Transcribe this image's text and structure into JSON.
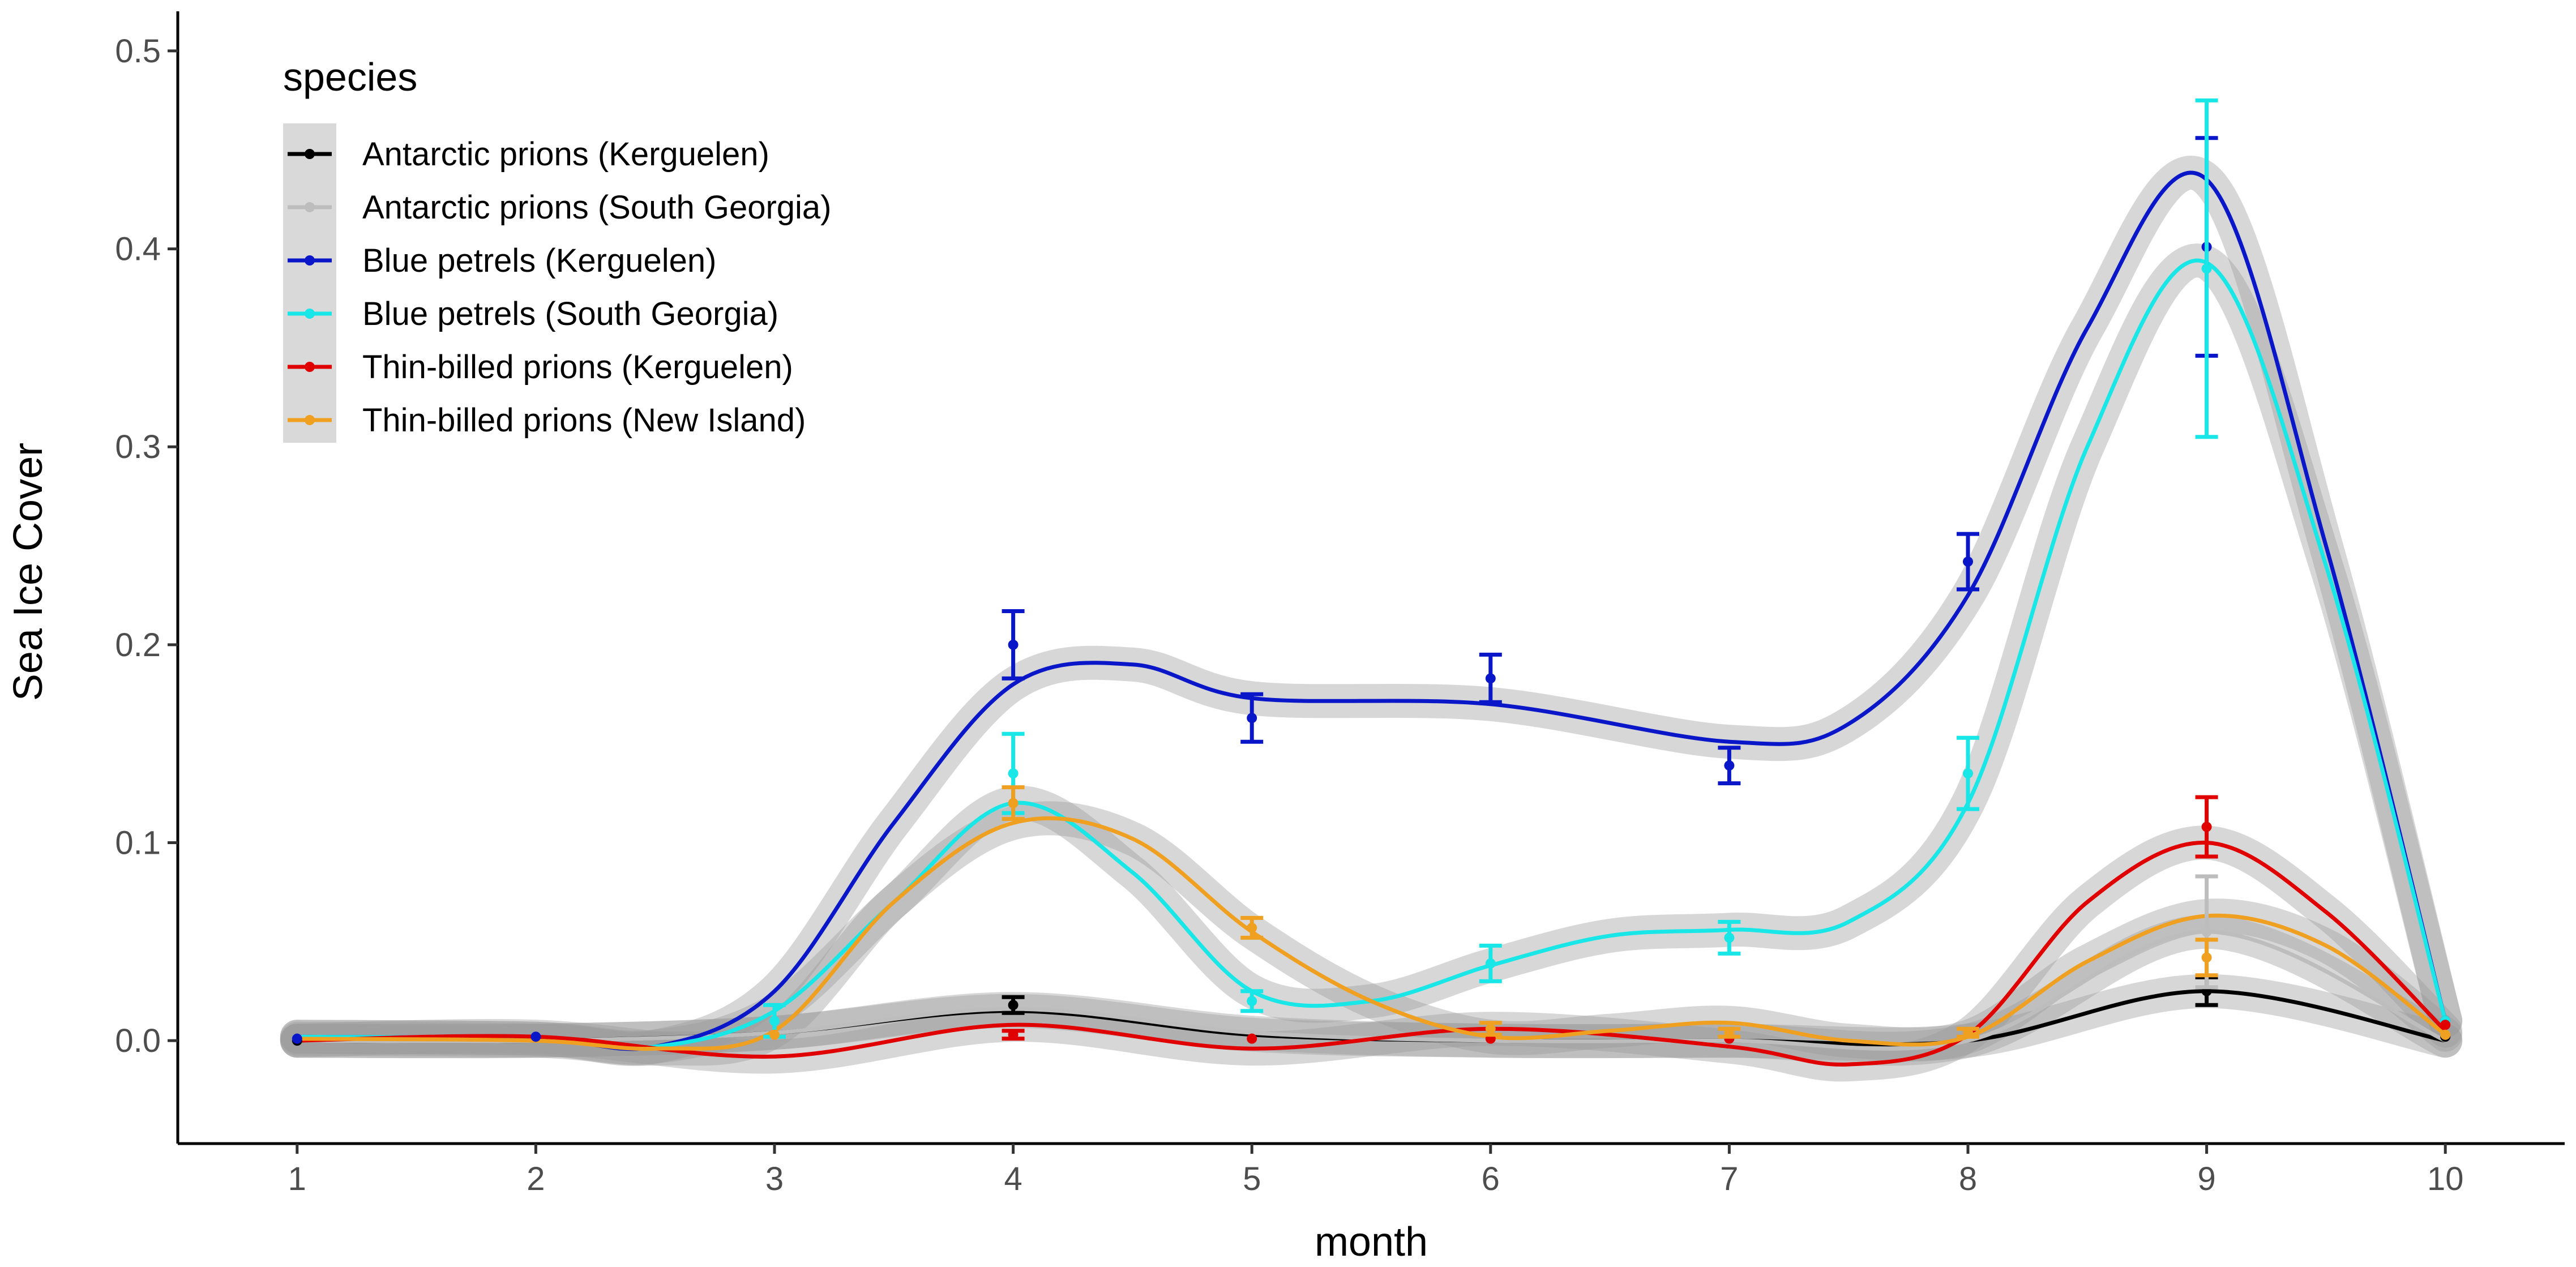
{
  "chart_data": {
    "type": "line",
    "title": "",
    "xlabel": "month",
    "ylabel": "Sea Ice Cover",
    "xlim": [
      0.5,
      10.5
    ],
    "ylim": [
      -0.052,
      0.52
    ],
    "xticks": [
      "1",
      "2",
      "3",
      "4",
      "5",
      "6",
      "7",
      "8",
      "9",
      "10"
    ],
    "yticks": [
      "0.0",
      "0.1",
      "0.2",
      "0.3",
      "0.4",
      "0.5"
    ],
    "legend": {
      "title": "species",
      "position": "top-left"
    },
    "series": [
      {
        "name": "Antarctic prions (Kerguelen)",
        "color": "#000000",
        "points": [
          {
            "x": 1,
            "y": 0.0
          },
          {
            "x": 4,
            "y": 0.018,
            "se": 0.004
          },
          {
            "x": 9,
            "y": 0.025,
            "se": 0.007
          },
          {
            "x": 10,
            "y": 0.002
          }
        ],
        "smooth": [
          [
            1,
            0.0
          ],
          [
            2,
            0.0
          ],
          [
            3,
            0.004
          ],
          [
            4,
            0.015
          ],
          [
            5,
            0.003
          ],
          [
            6,
            0.0
          ],
          [
            7,
            0.0
          ],
          [
            8,
            0.0
          ],
          [
            9,
            0.025
          ],
          [
            10,
            0.0
          ]
        ]
      },
      {
        "name": "Antarctic prions (South Georgia)",
        "color": "#bdbdbd",
        "points": [
          {
            "x": 9,
            "y": 0.055,
            "se": 0.028
          },
          {
            "x": 10,
            "y": 0.003
          }
        ],
        "smooth": [
          [
            1,
            0.0
          ],
          [
            2,
            0.0
          ],
          [
            3,
            0.004
          ],
          [
            4,
            0.016
          ],
          [
            5,
            0.004
          ],
          [
            6,
            0.0
          ],
          [
            7,
            0.0
          ],
          [
            8,
            0.0
          ],
          [
            9,
            0.055
          ],
          [
            10,
            0.0
          ]
        ]
      },
      {
        "name": "Blue petrels (Kerguelen)",
        "color": "#0a17c8",
        "points": [
          {
            "x": 1,
            "y": 0.001
          },
          {
            "x": 2,
            "y": 0.002
          },
          {
            "x": 4,
            "y": 0.2,
            "se": 0.017
          },
          {
            "x": 5,
            "y": 0.163,
            "se": 0.012
          },
          {
            "x": 6,
            "y": 0.183,
            "se": 0.012
          },
          {
            "x": 7,
            "y": 0.139,
            "se": 0.009
          },
          {
            "x": 8,
            "y": 0.242,
            "se": 0.014
          },
          {
            "x": 9,
            "y": 0.401,
            "se": 0.055
          },
          {
            "x": 10,
            "y": 0.01
          }
        ],
        "smooth": [
          [
            1,
            0.002
          ],
          [
            2,
            0.001
          ],
          [
            2.5,
            -0.003
          ],
          [
            3,
            0.025
          ],
          [
            3.5,
            0.11
          ],
          [
            4,
            0.18
          ],
          [
            4.5,
            0.19
          ],
          [
            5,
            0.173
          ],
          [
            6,
            0.17
          ],
          [
            7,
            0.151
          ],
          [
            7.5,
            0.16
          ],
          [
            8,
            0.225
          ],
          [
            8.5,
            0.36
          ],
          [
            9,
            0.435
          ],
          [
            9.5,
            0.25
          ],
          [
            10,
            0.01
          ]
        ]
      },
      {
        "name": "Blue petrels (South Georgia)",
        "color": "#19e6e6",
        "points": [
          {
            "x": 3,
            "y": 0.01,
            "se": 0.008
          },
          {
            "x": 4,
            "y": 0.135,
            "se": 0.02
          },
          {
            "x": 5,
            "y": 0.02,
            "se": 0.005
          },
          {
            "x": 6,
            "y": 0.039,
            "se": 0.009
          },
          {
            "x": 7,
            "y": 0.052,
            "se": 0.008
          },
          {
            "x": 8,
            "y": 0.135,
            "se": 0.018
          },
          {
            "x": 9,
            "y": 0.39,
            "se": 0.085
          },
          {
            "x": 10,
            "y": 0.01
          }
        ],
        "smooth": [
          [
            1,
            0.002
          ],
          [
            2,
            0.001
          ],
          [
            2.5,
            -0.003
          ],
          [
            3,
            0.015
          ],
          [
            3.5,
            0.07
          ],
          [
            4,
            0.12
          ],
          [
            4.5,
            0.085
          ],
          [
            5,
            0.025
          ],
          [
            5.5,
            0.02
          ],
          [
            6,
            0.038
          ],
          [
            6.5,
            0.053
          ],
          [
            7,
            0.056
          ],
          [
            7.5,
            0.06
          ],
          [
            8,
            0.12
          ],
          [
            8.5,
            0.3
          ],
          [
            9,
            0.393
          ],
          [
            9.5,
            0.24
          ],
          [
            10,
            0.01
          ]
        ]
      },
      {
        "name": "Thin-billed prions (Kerguelen)",
        "color": "#e00000",
        "points": [
          {
            "x": 4,
            "y": 0.003,
            "se": 0.002
          },
          {
            "x": 5,
            "y": 0.001
          },
          {
            "x": 6,
            "y": 0.001
          },
          {
            "x": 7,
            "y": 0.001
          },
          {
            "x": 9,
            "y": 0.108,
            "se": 0.015
          },
          {
            "x": 10,
            "y": 0.008
          }
        ],
        "smooth": [
          [
            1,
            0.0
          ],
          [
            2,
            0.002
          ],
          [
            3,
            -0.008
          ],
          [
            4,
            0.008
          ],
          [
            5,
            -0.004
          ],
          [
            6,
            0.006
          ],
          [
            7,
            -0.003
          ],
          [
            7.5,
            -0.012
          ],
          [
            8,
            0.003
          ],
          [
            8.5,
            0.07
          ],
          [
            9,
            0.1
          ],
          [
            9.5,
            0.065
          ],
          [
            10,
            0.005
          ]
        ]
      },
      {
        "name": "Thin-billed prions (New Island)",
        "color": "#f0a020",
        "points": [
          {
            "x": 3,
            "y": 0.003
          },
          {
            "x": 4,
            "y": 0.12,
            "se": 0.008
          },
          {
            "x": 5,
            "y": 0.057,
            "se": 0.005
          },
          {
            "x": 6,
            "y": 0.006,
            "se": 0.003
          },
          {
            "x": 7,
            "y": 0.004,
            "se": 0.002
          },
          {
            "x": 8,
            "y": 0.004,
            "se": 0.002
          },
          {
            "x": 9,
            "y": 0.042,
            "se": 0.009
          },
          {
            "x": 10,
            "y": 0.003
          }
        ],
        "smooth": [
          [
            1,
            0.001
          ],
          [
            2,
            0.0
          ],
          [
            2.5,
            -0.004
          ],
          [
            3,
            0.005
          ],
          [
            3.5,
            0.07
          ],
          [
            4,
            0.11
          ],
          [
            4.5,
            0.102
          ],
          [
            5,
            0.055
          ],
          [
            5.5,
            0.02
          ],
          [
            6,
            0.002
          ],
          [
            6.5,
            0.005
          ],
          [
            7,
            0.009
          ],
          [
            7.5,
            0.0
          ],
          [
            8,
            0.002
          ],
          [
            8.5,
            0.04
          ],
          [
            9,
            0.063
          ],
          [
            9.5,
            0.048
          ],
          [
            10,
            0.003
          ]
        ]
      }
    ]
  }
}
